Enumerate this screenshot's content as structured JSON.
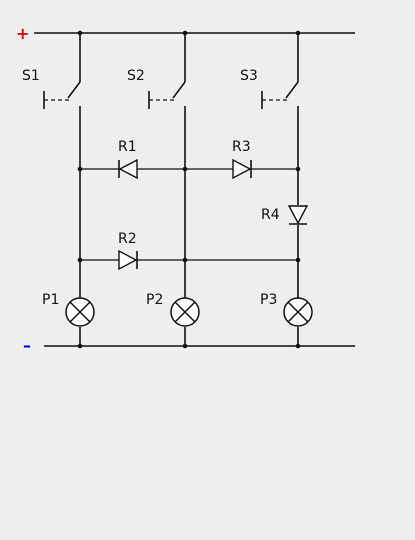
{
  "colors": {
    "background": "#efefef",
    "wire": "#111111",
    "positive": "#e00000",
    "negative": "#0000dd"
  },
  "polarity": {
    "positive": "+",
    "negative": "–"
  },
  "switches": [
    {
      "label": "S1"
    },
    {
      "label": "S2"
    },
    {
      "label": "S3"
    }
  ],
  "diodes": [
    {
      "label": "R1"
    },
    {
      "label": "R3"
    },
    {
      "label": "R4"
    },
    {
      "label": "R2"
    }
  ],
  "lamps": [
    {
      "label": "P1"
    },
    {
      "label": "P2"
    },
    {
      "label": "P3"
    }
  ]
}
